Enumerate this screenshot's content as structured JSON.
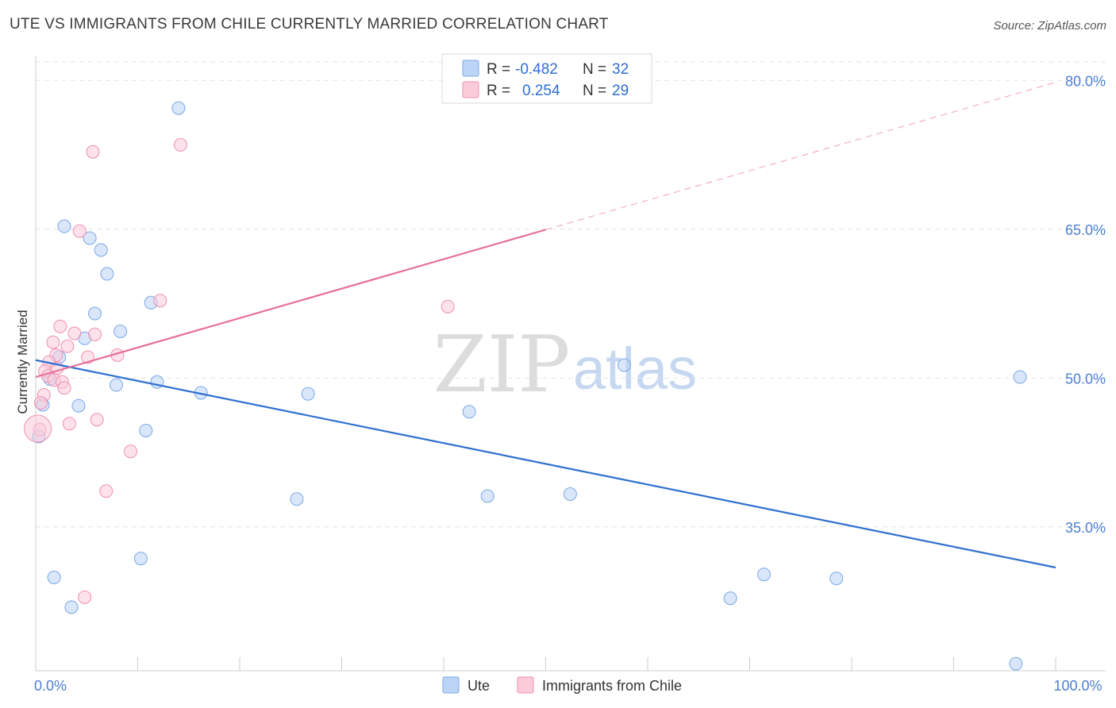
{
  "title": "UTE VS IMMIGRANTS FROM CHILE CURRENTLY MARRIED CORRELATION CHART",
  "source": "Source: ZipAtlas.com",
  "watermark": {
    "zip": "ZIP",
    "atlas": "atlas"
  },
  "legend_top": {
    "rows": [
      {
        "r_label": "R =",
        "r_value": "-0.482",
        "n_label": "N =",
        "n_value": "32",
        "color": "#7aa8e8"
      },
      {
        "r_label": "R =",
        "r_value": "0.254",
        "n_label": "N =",
        "n_value": "29",
        "color": "#f090b0"
      }
    ]
  },
  "legend_bottom": {
    "items": [
      {
        "label": "Ute",
        "color": "#7aa8e8"
      },
      {
        "label": "Immigrants from Chile",
        "color": "#f090b0"
      }
    ]
  },
  "chart_data": {
    "type": "scatter",
    "title": "UTE VS IMMIGRANTS FROM CHILE CURRENTLY MARRIED CORRELATION CHART",
    "xlabel": "",
    "ylabel": "Currently Married",
    "xlim": [
      0,
      100
    ],
    "ylim": [
      20.5,
      82.5
    ],
    "x_tick_labels": [
      {
        "value": 0,
        "label": "0.0%"
      },
      {
        "value": 100,
        "label": "100.0%"
      }
    ],
    "y_tick_labels": [
      {
        "value": 80,
        "label": "80.0%"
      },
      {
        "value": 65,
        "label": "65.0%"
      },
      {
        "value": 50,
        "label": "50.0%"
      },
      {
        "value": 35,
        "label": "35.0%"
      }
    ],
    "grid": true,
    "series": [
      {
        "name": "Ute",
        "color": "#7aa8e8",
        "trend": {
          "x0": 0,
          "y0": 51.8,
          "x1": 100,
          "y1": 30.9,
          "dashed_from": null
        },
        "points": [
          {
            "x": 14.0,
            "y": 77.2
          },
          {
            "x": 2.8,
            "y": 65.3
          },
          {
            "x": 5.3,
            "y": 64.1
          },
          {
            "x": 6.4,
            "y": 62.9
          },
          {
            "x": 7.0,
            "y": 60.5
          },
          {
            "x": 11.3,
            "y": 57.6
          },
          {
            "x": 5.8,
            "y": 56.5
          },
          {
            "x": 8.3,
            "y": 54.7
          },
          {
            "x": 4.8,
            "y": 54.0
          },
          {
            "x": 2.3,
            "y": 52.1
          },
          {
            "x": 1.4,
            "y": 49.9
          },
          {
            "x": 7.9,
            "y": 49.3
          },
          {
            "x": 11.9,
            "y": 49.6
          },
          {
            "x": 16.2,
            "y": 48.5
          },
          {
            "x": 26.7,
            "y": 48.4
          },
          {
            "x": 0.7,
            "y": 47.3
          },
          {
            "x": 4.2,
            "y": 47.2
          },
          {
            "x": 42.5,
            "y": 46.6
          },
          {
            "x": 10.8,
            "y": 44.7
          },
          {
            "x": 0.3,
            "y": 44.1
          },
          {
            "x": 25.6,
            "y": 37.8
          },
          {
            "x": 44.3,
            "y": 38.1
          },
          {
            "x": 52.4,
            "y": 38.3
          },
          {
            "x": 57.7,
            "y": 51.3
          },
          {
            "x": 10.3,
            "y": 31.8
          },
          {
            "x": 1.8,
            "y": 29.9
          },
          {
            "x": 3.5,
            "y": 26.9
          },
          {
            "x": 68.1,
            "y": 27.8
          },
          {
            "x": 71.4,
            "y": 30.2
          },
          {
            "x": 78.5,
            "y": 29.8
          },
          {
            "x": 96.5,
            "y": 50.1
          },
          {
            "x": 96.1,
            "y": 21.2
          }
        ]
      },
      {
        "name": "Immigrants from Chile",
        "color": "#f090b0",
        "trend": {
          "x0": 0,
          "y0": 50.1,
          "x1": 100,
          "y1": 79.8,
          "dashed_from": 50
        },
        "points": [
          {
            "x": 14.2,
            "y": 73.5
          },
          {
            "x": 5.6,
            "y": 72.8
          },
          {
            "x": 4.3,
            "y": 64.8
          },
          {
            "x": 12.2,
            "y": 57.8
          },
          {
            "x": 40.4,
            "y": 57.2
          },
          {
            "x": 2.4,
            "y": 55.2
          },
          {
            "x": 3.8,
            "y": 54.5
          },
          {
            "x": 5.8,
            "y": 54.4
          },
          {
            "x": 1.7,
            "y": 53.6
          },
          {
            "x": 3.1,
            "y": 53.2
          },
          {
            "x": 2.0,
            "y": 52.3
          },
          {
            "x": 5.1,
            "y": 52.1
          },
          {
            "x": 8.0,
            "y": 52.3
          },
          {
            "x": 1.3,
            "y": 51.6
          },
          {
            "x": 2.1,
            "y": 51.0
          },
          {
            "x": 0.9,
            "y": 50.7
          },
          {
            "x": 1.2,
            "y": 50.2
          },
          {
            "x": 1.8,
            "y": 49.8
          },
          {
            "x": 2.6,
            "y": 49.6
          },
          {
            "x": 2.8,
            "y": 49.0
          },
          {
            "x": 0.8,
            "y": 48.3
          },
          {
            "x": 0.5,
            "y": 47.5
          },
          {
            "x": 6.0,
            "y": 45.8
          },
          {
            "x": 3.3,
            "y": 45.4
          },
          {
            "x": 0.4,
            "y": 44.8
          },
          {
            "x": 9.3,
            "y": 42.6
          },
          {
            "x": 6.9,
            "y": 38.6
          },
          {
            "x": 4.8,
            "y": 27.9
          },
          {
            "x": 0.2,
            "y": 44.9
          }
        ]
      }
    ]
  }
}
